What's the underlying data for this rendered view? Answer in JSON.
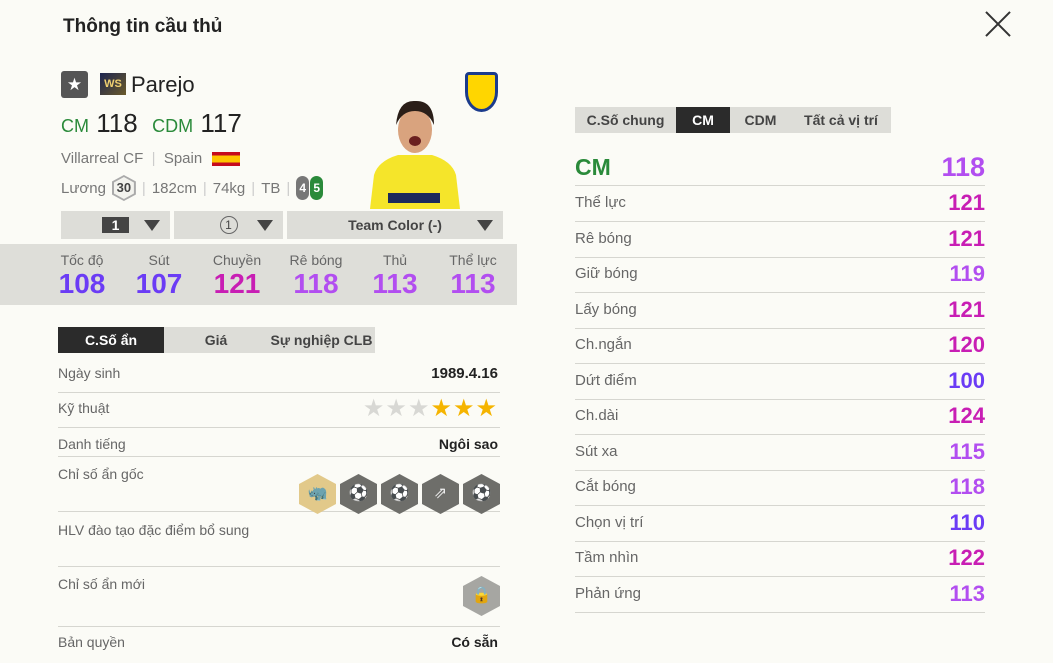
{
  "header": {
    "title": "Thông tin cầu thủ",
    "close_icon": "close-icon"
  },
  "player": {
    "season_badge": "WS",
    "name": "Parejo",
    "positions": [
      {
        "pos": "CM",
        "ovr": "118"
      },
      {
        "pos": "CDM",
        "ovr": "117"
      }
    ],
    "club": "Villarreal CF",
    "nation": "Spain",
    "salary_label": "Lương",
    "salary": "30",
    "height": "182cm",
    "weight": "74kg",
    "body": "TB",
    "weak_foot": "4",
    "strong_foot": "5"
  },
  "selectors": {
    "level": "1",
    "rank": "1",
    "kit": "Team Color (-)"
  },
  "main_stats": [
    {
      "label": "Tốc độ",
      "value": "108",
      "color": "#6b3cf5"
    },
    {
      "label": "Sút",
      "value": "107",
      "color": "#6b3cf5"
    },
    {
      "label": "Chuyền",
      "value": "121",
      "color": "#c81eb4"
    },
    {
      "label": "Rê bóng",
      "value": "118",
      "color": "#b24ef0"
    },
    {
      "label": "Thủ",
      "value": "113",
      "color": "#b24ef0"
    },
    {
      "label": "Thể lực",
      "value": "113",
      "color": "#b24ef0"
    }
  ],
  "left_tabs": [
    "C.Số ẩn",
    "Giá",
    "Sự nghiệp CLB"
  ],
  "details": {
    "birth_label": "Ngày sinh",
    "birth": "1989.4.16",
    "skill_label": "Kỹ thuật",
    "skill_stars": 3,
    "skill_max": 6,
    "rep_label": "Danh tiếng",
    "rep": "Ngôi sao",
    "traits_label": "Chỉ số ẩn gốc",
    "coach_label": "HLV đào tạo đặc điểm bổ sung",
    "new_traits_label": "Chỉ số ẩn mới",
    "license_label": "Bản quyền",
    "license": "Có sẵn"
  },
  "right_tabs": [
    "C.Số chung",
    "CM",
    "CDM",
    "Tất cả vị trí"
  ],
  "position_summary": {
    "pos": "CM",
    "value": "118",
    "color": "#b24ef0"
  },
  "attributes": [
    {
      "label": "Thể lực",
      "value": "121",
      "color": "#c81eb4"
    },
    {
      "label": "Rê bóng",
      "value": "121",
      "color": "#c81eb4"
    },
    {
      "label": "Giữ bóng",
      "value": "119",
      "color": "#b24ef0"
    },
    {
      "label": "Lấy bóng",
      "value": "121",
      "color": "#c81eb4"
    },
    {
      "label": "Ch.ngắn",
      "value": "120",
      "color": "#c81eb4"
    },
    {
      "label": "Dứt điểm",
      "value": "100",
      "color": "#6b3cf5"
    },
    {
      "label": "Ch.dài",
      "value": "124",
      "color": "#c81eb4"
    },
    {
      "label": "Sút xa",
      "value": "115",
      "color": "#b24ef0"
    },
    {
      "label": "Cắt bóng",
      "value": "118",
      "color": "#b24ef0"
    },
    {
      "label": "Chọn vị trí",
      "value": "110",
      "color": "#6b3cf5"
    },
    {
      "label": "Tầm nhìn",
      "value": "122",
      "color": "#c81eb4"
    },
    {
      "label": "Phản ứng",
      "value": "113",
      "color": "#b24ef0"
    }
  ]
}
